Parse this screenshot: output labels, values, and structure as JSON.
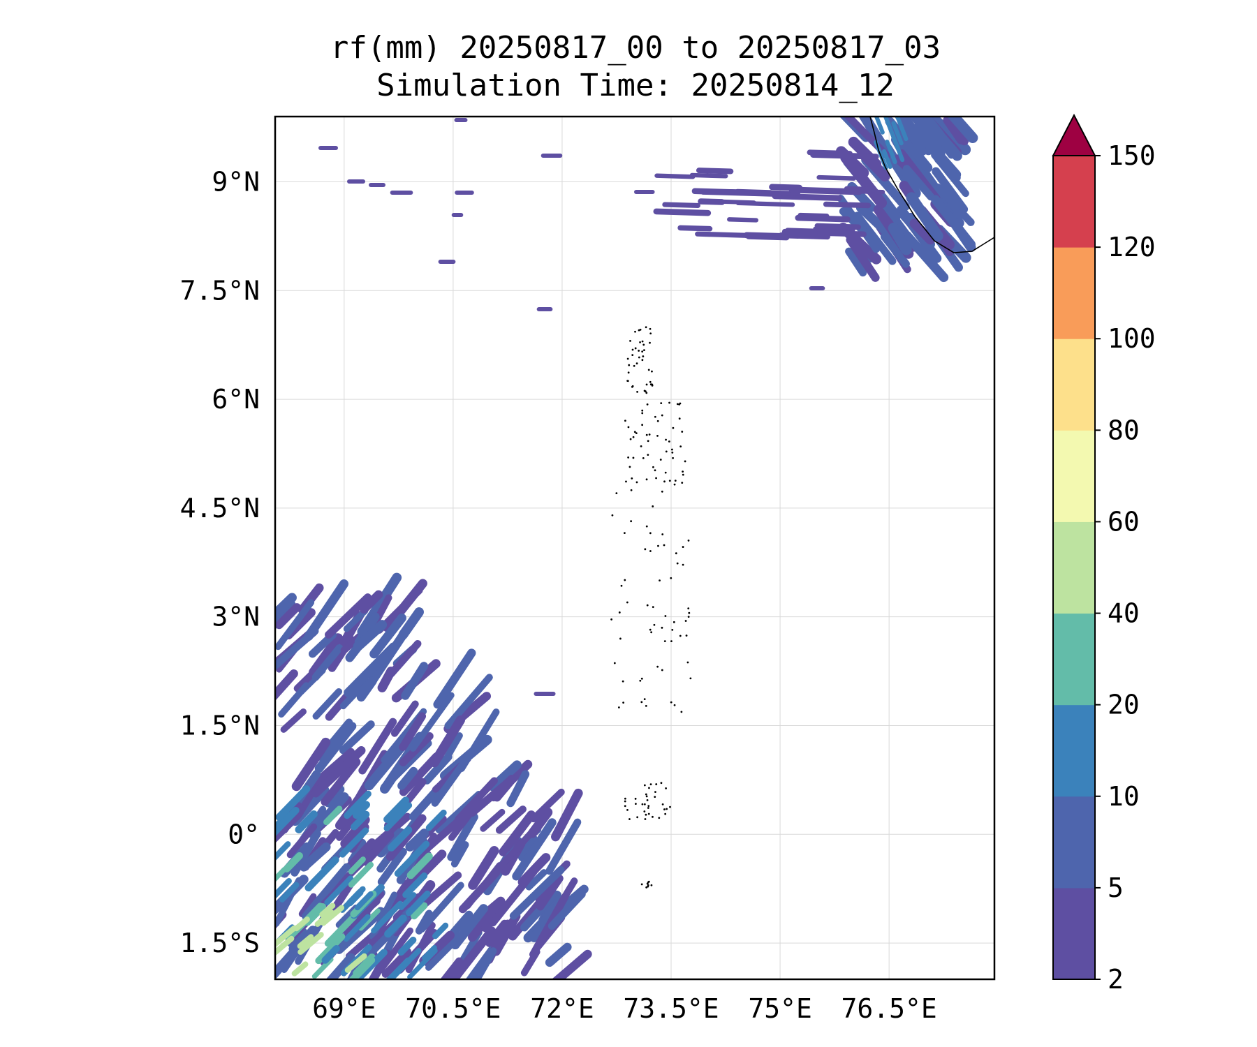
{
  "title": {
    "line1": "rf(mm) 20250817_00 to 20250817_03",
    "line2": "Simulation Time: 20250814_12"
  },
  "map": {
    "lon_range": [
      68.05,
      77.95
    ],
    "lat_range": [
      -2.0,
      9.9
    ],
    "lon_ticks": [
      {
        "value": 69.0,
        "label": "69°E"
      },
      {
        "value": 70.5,
        "label": "70.5°E"
      },
      {
        "value": 72.0,
        "label": "72°E"
      },
      {
        "value": 73.5,
        "label": "73.5°E"
      },
      {
        "value": 75.0,
        "label": "75°E"
      },
      {
        "value": 76.5,
        "label": "76.5°E"
      }
    ],
    "lat_ticks": [
      {
        "value": 9.0,
        "label": "9°N"
      },
      {
        "value": 7.5,
        "label": "7.5°N"
      },
      {
        "value": 6.0,
        "label": "6°N"
      },
      {
        "value": 4.5,
        "label": "4.5°N"
      },
      {
        "value": 3.0,
        "label": "3°N"
      },
      {
        "value": 1.5,
        "label": "1.5°N"
      },
      {
        "value": 0.0,
        "label": "0°"
      },
      {
        "value": -1.5,
        "label": "1.5°S"
      }
    ],
    "grid": true
  },
  "colorbar": {
    "levels": [
      "2",
      "5",
      "10",
      "20",
      "40",
      "60",
      "80",
      "100",
      "120",
      "150"
    ],
    "colors": [
      "#5e4fa2",
      "#4e65ad",
      "#3b82bb",
      "#63bca9",
      "#bde3a0",
      "#f3f9b0",
      "#fde08b",
      "#f99c59",
      "#d5404e"
    ],
    "extend_color": "#9e0142"
  },
  "colors": {
    "rain_low": "#5e4fa2",
    "rain_5_10": "#4e65ad",
    "rain_10_20": "#3b82bb",
    "rain_20_40": "#63bca9",
    "rain_40_60": "#bde3a0"
  }
}
